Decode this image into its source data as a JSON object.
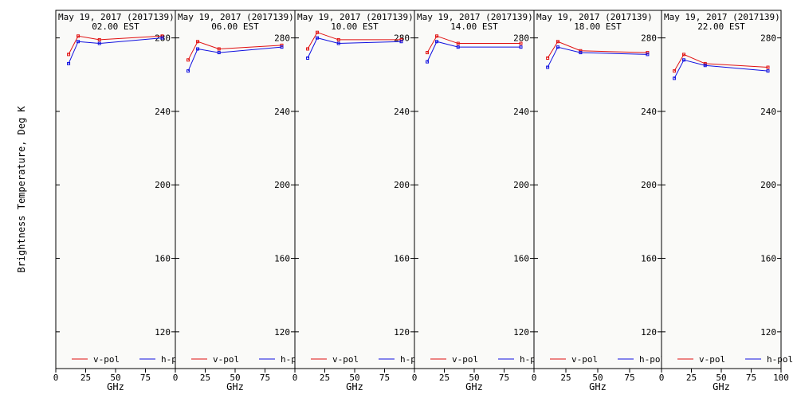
{
  "chart_data": {
    "type": "line",
    "ylabel": "Brightness Temperature, Deg K",
    "xlabel": "GHz",
    "ylim": [
      100,
      295
    ],
    "yticks": [
      120,
      160,
      200,
      240,
      280
    ],
    "xlim": [
      0,
      100
    ],
    "xticks": [
      0,
      25,
      50,
      75,
      100
    ],
    "x": [
      10.7,
      18.7,
      36.5,
      89
    ],
    "background": "#fafaf8",
    "legend": {
      "placement": "bottom",
      "entries": [
        {
          "name": "v-pol",
          "color": "#e01010"
        },
        {
          "name": "h-pol",
          "color": "#1010e0"
        }
      ]
    },
    "panels": [
      {
        "date": "May 19, 2017 (2017139)",
        "time": "02.00 EST",
        "series": [
          {
            "name": "v-pol",
            "values": [
              271,
              281,
              279,
              281
            ]
          },
          {
            "name": "h-pol",
            "values": [
              266,
              278,
              277,
              280
            ]
          }
        ]
      },
      {
        "date": "May 19, 2017 (2017139)",
        "time": "06.00 EST",
        "series": [
          {
            "name": "v-pol",
            "values": [
              268,
              278,
              274,
              276
            ]
          },
          {
            "name": "h-pol",
            "values": [
              262,
              274,
              272,
              275
            ]
          }
        ]
      },
      {
        "date": "May 19, 2017 (2017139)",
        "time": "10.00 EST",
        "series": [
          {
            "name": "v-pol",
            "values": [
              274,
              283,
              279,
              279
            ]
          },
          {
            "name": "h-pol",
            "values": [
              269,
              280,
              277,
              278
            ]
          }
        ]
      },
      {
        "date": "May 19, 2017 (2017139)",
        "time": "14.00 EST",
        "series": [
          {
            "name": "v-pol",
            "values": [
              272,
              281,
              277,
              277
            ]
          },
          {
            "name": "h-pol",
            "values": [
              267,
              278,
              275,
              275
            ]
          }
        ]
      },
      {
        "date": "May 19, 2017 (2017139)",
        "time": "18.00 EST",
        "series": [
          {
            "name": "v-pol",
            "values": [
              269,
              278,
              273,
              272
            ]
          },
          {
            "name": "h-pol",
            "values": [
              264,
              275,
              272,
              271
            ]
          }
        ]
      },
      {
        "date": "May 19, 2017 (2017139)",
        "time": "22.00 EST",
        "series": [
          {
            "name": "v-pol",
            "values": [
              262,
              271,
              266,
              264
            ]
          },
          {
            "name": "h-pol",
            "values": [
              258,
              268,
              265,
              262
            ]
          }
        ]
      }
    ]
  }
}
